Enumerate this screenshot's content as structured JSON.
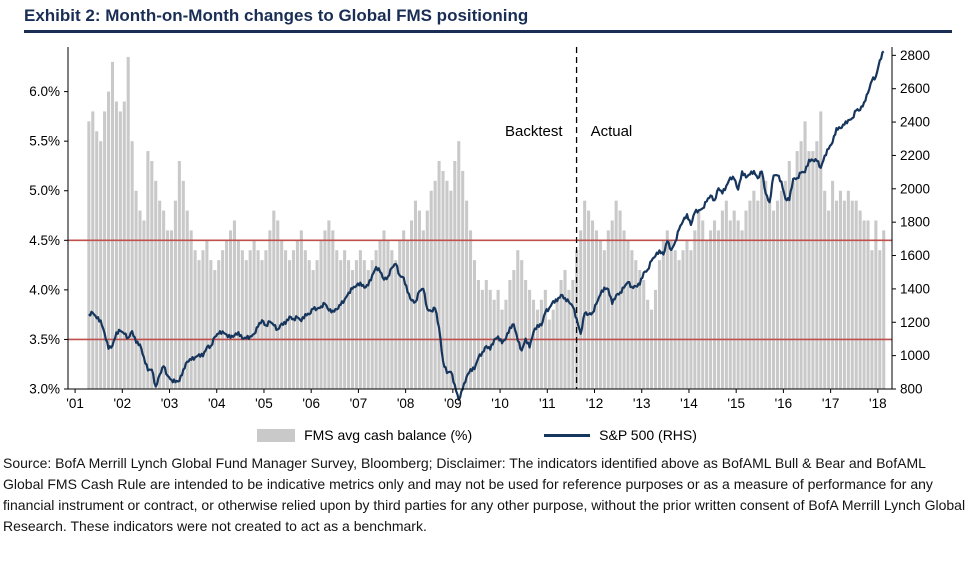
{
  "chart_data": {
    "type": "combo-bar-line",
    "title": "Exhibit 2: Month-on-Month changes to Global FMS positioning",
    "x_domain": [
      2000.85,
      2018.3
    ],
    "x_ticks": {
      "values": [
        2001,
        2002,
        2003,
        2004,
        2005,
        2006,
        2007,
        2008,
        2009,
        2010,
        2011,
        2012,
        2013,
        2014,
        2015,
        2016,
        2017,
        2018
      ],
      "labels": [
        "'01",
        "'02",
        "'03",
        "'04",
        "'05",
        "'06",
        "'07",
        "'08",
        "'09",
        "'10",
        "'11",
        "'12",
        "'13",
        "'14",
        "'15",
        "'16",
        "'17",
        "'18"
      ]
    },
    "y_left": {
      "min": 3.0,
      "max": 6.45,
      "tick_values": [
        3.0,
        3.5,
        4.0,
        4.5,
        5.0,
        5.5,
        6.0
      ],
      "tick_labels": [
        "3.0%",
        "3.5%",
        "4.0%",
        "4.5%",
        "5.0%",
        "5.5%",
        "6.0%"
      ]
    },
    "y_right": {
      "min": 800,
      "max": 2850,
      "tick_values": [
        800,
        1000,
        1200,
        1400,
        1600,
        1800,
        2000,
        2200,
        2400,
        2600,
        2800
      ],
      "tick_labels": [
        "800",
        "1000",
        "1200",
        "1400",
        "1600",
        "1800",
        "2000",
        "2200",
        "2400",
        "2600",
        "2800"
      ]
    },
    "thresholds": {
      "axis": "left",
      "values": [
        3.5,
        4.5
      ],
      "color": "#c0504d"
    },
    "divider": {
      "x": 2011.62,
      "label_left": "Backtest",
      "label_right": "Actual",
      "color": "#000000"
    },
    "colors": {
      "bar": "#c9c9c9",
      "line": "#17365d",
      "title": "#1a2e55",
      "threshold": "#c0504d"
    },
    "series": [
      {
        "name": "FMS avg cash balance (%)",
        "type": "bar",
        "axis": "left",
        "start_year": 2001,
        "start_month": 4,
        "values": [
          5.7,
          5.8,
          5.6,
          5.5,
          5.8,
          6.0,
          6.3,
          5.9,
          5.8,
          5.9,
          6.35,
          5.5,
          5.0,
          4.8,
          4.7,
          5.4,
          5.3,
          5.1,
          4.9,
          4.8,
          4.6,
          4.6,
          4.9,
          5.3,
          5.1,
          4.8,
          4.6,
          4.4,
          4.3,
          4.4,
          4.5,
          4.3,
          4.2,
          4.3,
          4.4,
          4.5,
          4.6,
          4.7,
          4.5,
          4.4,
          4.3,
          4.4,
          4.5,
          4.4,
          4.3,
          4.4,
          4.6,
          4.8,
          4.7,
          4.5,
          4.4,
          4.3,
          4.4,
          4.5,
          4.6,
          4.4,
          4.3,
          4.2,
          4.3,
          4.5,
          4.6,
          4.7,
          4.6,
          4.4,
          4.3,
          4.4,
          4.3,
          4.2,
          4.3,
          4.4,
          4.3,
          4.2,
          4.3,
          4.4,
          4.5,
          4.6,
          4.5,
          4.4,
          4.3,
          4.5,
          4.6,
          4.5,
          4.7,
          4.9,
          4.8,
          4.6,
          4.8,
          5.0,
          5.1,
          5.3,
          5.2,
          5.1,
          5.0,
          5.3,
          5.5,
          5.2,
          4.9,
          4.6,
          4.3,
          4.1,
          4.0,
          4.1,
          4.0,
          3.9,
          4.0,
          3.8,
          3.9,
          4.1,
          4.2,
          4.4,
          4.3,
          4.1,
          4.0,
          3.9,
          3.8,
          3.9,
          4.0,
          3.7,
          3.8,
          3.9,
          4.1,
          4.2,
          4.0,
          4.1,
          4.4,
          4.6,
          4.9,
          4.8,
          4.7,
          4.6,
          4.5,
          4.4,
          4.6,
          4.7,
          4.9,
          4.8,
          4.6,
          4.5,
          4.4,
          4.3,
          4.2,
          4.1,
          3.9,
          3.8,
          4.0,
          4.3,
          4.5,
          4.6,
          4.5,
          4.4,
          4.3,
          4.4,
          4.5,
          4.4,
          4.6,
          4.8,
          4.7,
          4.5,
          4.6,
          4.7,
          4.6,
          4.8,
          4.9,
          4.7,
          4.8,
          4.7,
          4.6,
          4.8,
          4.9,
          5.0,
          4.9,
          5.2,
          5.1,
          4.9,
          4.8,
          4.9,
          5.0,
          5.1,
          5.3,
          5.1,
          5.4,
          5.5,
          5.7,
          5.4,
          5.4,
          5.5,
          5.8,
          5.0,
          4.8,
          5.1,
          4.9,
          5.0,
          4.9,
          5.0,
          4.9,
          4.9,
          4.8,
          4.7,
          4.7,
          4.4,
          4.7,
          4.4,
          4.6
        ]
      },
      {
        "name": "S&P 500 (RHS)",
        "type": "line",
        "axis": "right",
        "start_year": 2001,
        "start_month": 4,
        "values": [
          1249,
          1256,
          1224,
          1211,
          1134,
          1041,
          1060,
          1139,
          1148,
          1130,
          1107,
          1147,
          1077,
          1067,
          990,
          911,
          916,
          815,
          886,
          936,
          880,
          856,
          841,
          848,
          917,
          964,
          975,
          990,
          1008,
          996,
          1051,
          1058,
          1112,
          1131,
          1145,
          1126,
          1107,
          1121,
          1141,
          1102,
          1104,
          1115,
          1130,
          1174,
          1212,
          1181,
          1204,
          1181,
          1157,
          1192,
          1191,
          1234,
          1220,
          1229,
          1207,
          1249,
          1248,
          1280,
          1281,
          1295,
          1311,
          1270,
          1270,
          1277,
          1304,
          1336,
          1378,
          1401,
          1418,
          1438,
          1407,
          1421,
          1482,
          1531,
          1503,
          1455,
          1474,
          1527,
          1549,
          1481,
          1468,
          1379,
          1331,
          1323,
          1386,
          1400,
          1280,
          1267,
          1283,
          1166,
          969,
          896,
          903,
          826,
          735,
          798,
          873,
          919,
          919,
          987,
          1021,
          1057,
          1036,
          1096,
          1115,
          1074,
          1104,
          1169,
          1187,
          1089,
          1031,
          1102,
          1049,
          1141,
          1183,
          1181,
          1258,
          1286,
          1327,
          1326,
          1364,
          1345,
          1321,
          1292,
          1219,
          1131,
          1253,
          1247,
          1258,
          1312,
          1366,
          1408,
          1398,
          1310,
          1362,
          1379,
          1407,
          1441,
          1412,
          1416,
          1426,
          1498,
          1515,
          1569,
          1598,
          1631,
          1606,
          1686,
          1633,
          1682,
          1757,
          1806,
          1848,
          1783,
          1859,
          1872,
          1884,
          1924,
          1960,
          1931,
          2003,
          1972,
          2018,
          2068,
          2059,
          1995,
          2105,
          2068,
          2086,
          2107,
          2063,
          2104,
          1972,
          1920,
          2079,
          2080,
          2044,
          1940,
          1932,
          2060,
          2065,
          2097,
          2099,
          2174,
          2171,
          2168,
          2126,
          2199,
          2239,
          2279,
          2364,
          2363,
          2384,
          2412,
          2423,
          2470,
          2472,
          2519,
          2575,
          2648,
          2674,
          2770,
          2824
        ]
      }
    ]
  },
  "footer": {
    "source": "Source: BofA Merrill Lynch Global Fund Manager Survey, Bloomberg; Disclaimer: The indicators identified above as BofAML Bull & Bear and BofAML Global FMS Cash Rule are intended to be indicative metrics only and may not be used for reference purposes or as a measure of performance for any financial instrument or contract, or otherwise relied upon by third parties for any other purpose, without the prior written consent of BofA Merrill Lynch Global Research. These indicators were not created to act as a benchmark."
  }
}
